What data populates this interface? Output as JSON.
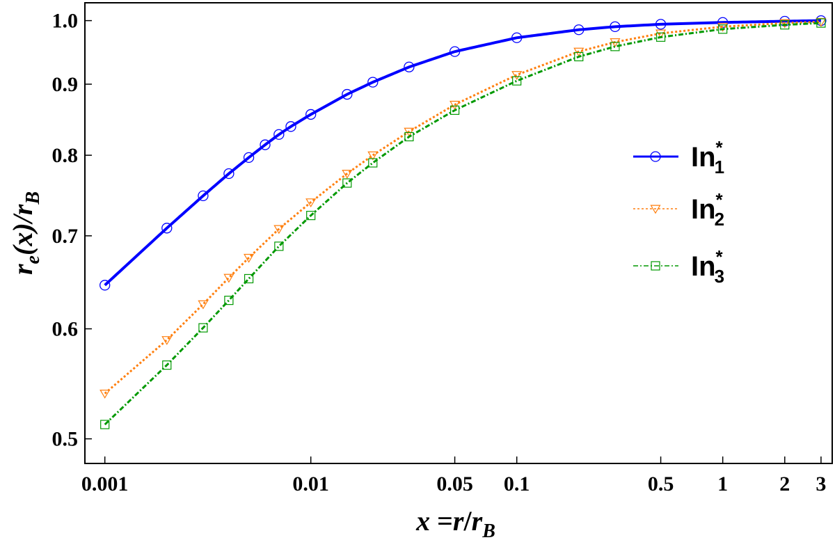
{
  "chart_data": {
    "type": "line",
    "title": "",
    "xlabel": {
      "var": "x",
      "eq": " =",
      "r": "r",
      "slash": "/",
      "rb": "r",
      "sub": "B"
    },
    "ylabel": {
      "r": "r",
      "sub_e": "e",
      "mid": "(x)/",
      "rb": "r",
      "sub_B": "B"
    },
    "x_scale": "log",
    "y_scale": "log",
    "xlim": [
      0.0008,
      3.4
    ],
    "ylim": [
      0.48,
      1.03
    ],
    "x_ticks": [
      {
        "v": 0.001,
        "label": "0.001"
      },
      {
        "v": 0.01,
        "label": "0.01"
      },
      {
        "v": 0.05,
        "label": "0.05"
      },
      {
        "v": 0.1,
        "label": "0.1"
      },
      {
        "v": 0.5,
        "label": "0.5"
      },
      {
        "v": 1,
        "label": "1"
      },
      {
        "v": 2,
        "label": "2"
      },
      {
        "v": 3,
        "label": "3"
      }
    ],
    "y_ticks": [
      {
        "v": 0.5,
        "label": "0.5"
      },
      {
        "v": 0.6,
        "label": "0.6"
      },
      {
        "v": 0.7,
        "label": "0.7"
      },
      {
        "v": 0.8,
        "label": "0.8"
      },
      {
        "v": 0.9,
        "label": "0.9"
      },
      {
        "v": 1.0,
        "label": "1.0"
      }
    ],
    "grid": false,
    "legend_position": "right",
    "series": [
      {
        "name": "In",
        "sub": "1",
        "sup": "*",
        "color": "#0000ff",
        "marker": "circle",
        "line": "solid",
        "x": [
          0.001,
          0.002,
          0.003,
          0.004,
          0.005,
          0.006,
          0.007,
          0.008,
          0.01,
          0.015,
          0.02,
          0.03,
          0.05,
          0.1,
          0.2,
          0.3,
          0.5,
          1,
          2,
          3
        ],
        "y": [
          0.645,
          0.709,
          0.748,
          0.776,
          0.797,
          0.814,
          0.828,
          0.839,
          0.856,
          0.885,
          0.903,
          0.926,
          0.95,
          0.972,
          0.985,
          0.99,
          0.994,
          0.997,
          0.999,
          1.0
        ]
      },
      {
        "name": "In",
        "sub": "2",
        "sup": "*",
        "color": "#ff7f0e",
        "marker": "triangle-down",
        "line": "dotted",
        "x": [
          0.001,
          0.002,
          0.003,
          0.004,
          0.005,
          0.007,
          0.01,
          0.015,
          0.02,
          0.03,
          0.05,
          0.1,
          0.2,
          0.3,
          0.5,
          1,
          2,
          3
        ],
        "y": [
          0.539,
          0.589,
          0.625,
          0.653,
          0.675,
          0.708,
          0.74,
          0.776,
          0.8,
          0.832,
          0.87,
          0.914,
          0.95,
          0.965,
          0.979,
          0.99,
          0.996,
          0.998
        ]
      },
      {
        "name": "In",
        "sub": "3",
        "sup": "*",
        "color": "#009900",
        "marker": "square",
        "line": "dashdot",
        "x": [
          0.001,
          0.002,
          0.003,
          0.004,
          0.005,
          0.007,
          0.01,
          0.015,
          0.02,
          0.03,
          0.05,
          0.1,
          0.2,
          0.3,
          0.5,
          1,
          2,
          3
        ],
        "y": [
          0.512,
          0.565,
          0.601,
          0.629,
          0.652,
          0.688,
          0.724,
          0.764,
          0.79,
          0.825,
          0.862,
          0.905,
          0.942,
          0.958,
          0.973,
          0.986,
          0.993,
          0.996
        ]
      }
    ]
  }
}
